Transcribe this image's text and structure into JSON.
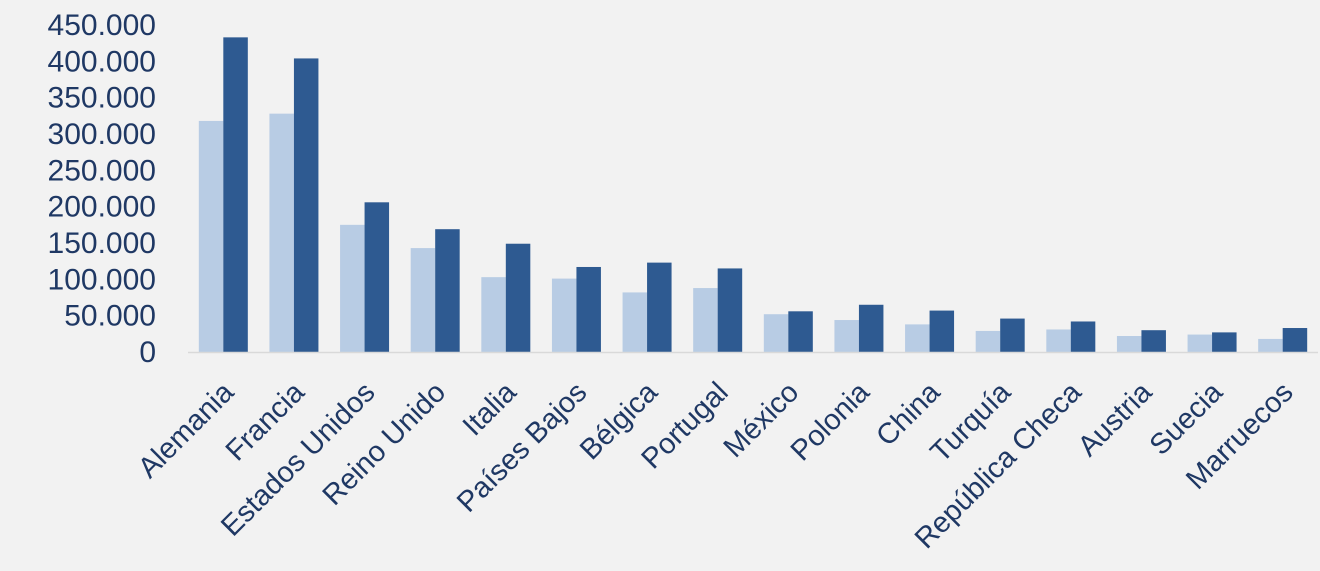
{
  "chart_data": {
    "type": "bar",
    "title": "",
    "xlabel": "",
    "ylabel": "",
    "ylim": [
      0,
      450000
    ],
    "yticks": [
      0,
      50000,
      100000,
      150000,
      200000,
      250000,
      300000,
      350000,
      400000,
      450000
    ],
    "ytick_labels": [
      "0",
      "50.000",
      "100.000",
      "150.000",
      "200.000",
      "250.000",
      "300.000",
      "350.000",
      "400.000",
      "450.000"
    ],
    "grid": false,
    "legend": "none",
    "categories": [
      "Alemania",
      "Francia",
      "Estados Unidos",
      "Reino Unido",
      "Italia",
      "Países Bajos",
      "Bélgica",
      "Portugal",
      "México",
      "Polonia",
      "China",
      "Turquía",
      "República Checa",
      "Austria",
      "Suecia",
      "Marruecos"
    ],
    "series": [
      {
        "color": "#b8cce4",
        "values": [
          318000,
          328000,
          175000,
          143000,
          103000,
          101000,
          82000,
          88000,
          52000,
          44000,
          38000,
          29000,
          31000,
          22000,
          24000,
          18000
        ]
      },
      {
        "color": "#2e5a91",
        "values": [
          433000,
          404000,
          206000,
          169000,
          149000,
          117000,
          123000,
          115000,
          56000,
          65000,
          57000,
          46000,
          42000,
          30000,
          27000,
          33000
        ]
      }
    ]
  }
}
